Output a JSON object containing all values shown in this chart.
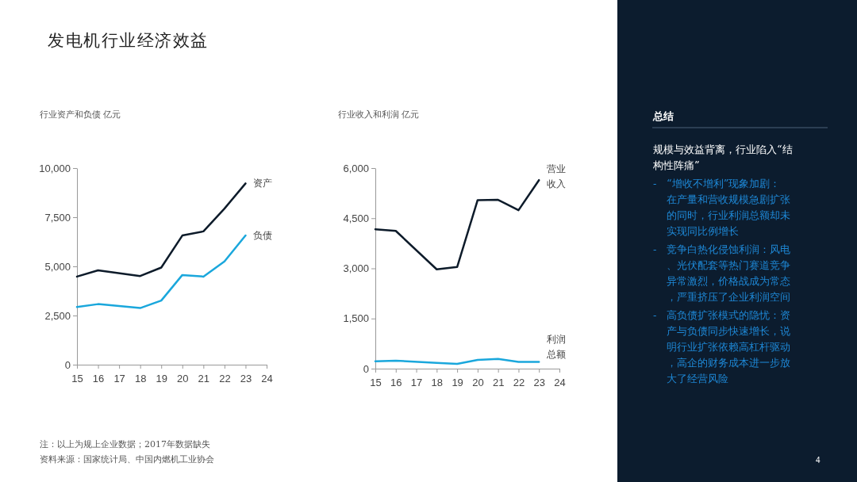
{
  "chart_data": [
    {
      "type": "other",
      "title": "发电机行业经济效益",
      "annotations": [
        "注：以上为规上企业数据；2017年数据缺失",
        "资料来源：国家统计局、中国内燃机工业协会",
        "4"
      ]
    },
    {
      "type": "line",
      "title": "行业资产和负债 亿元",
      "xlim": [
        15,
        24
      ],
      "xticks": [
        15,
        16,
        17,
        18,
        19,
        20,
        21,
        22,
        23,
        24
      ],
      "ylim": [
        0,
        10000
      ],
      "yticks": [
        {
          "value": 0,
          "label": "0"
        },
        {
          "value": 2500,
          "label": "2,500"
        },
        {
          "value": 5000,
          "label": "5,000"
        },
        {
          "value": 7500,
          "label": "7,500"
        },
        {
          "value": 10000,
          "label": "10,000"
        }
      ],
      "grid": false,
      "legend": false,
      "series": [
        {
          "name": "资产",
          "color": "#0d1b2a",
          "x": [
            15,
            16,
            18,
            19,
            20,
            21,
            22,
            23
          ],
          "values": [
            4480,
            4800,
            4510,
            4940,
            6570,
            6780,
            7940,
            9220
          ]
        },
        {
          "name": "负债",
          "color": "#1aa7dc",
          "x": [
            15,
            16,
            18,
            19,
            20,
            21,
            22,
            23
          ],
          "values": [
            2930,
            3080,
            2880,
            3260,
            4560,
            4480,
            5250,
            6570
          ]
        }
      ]
    },
    {
      "type": "line",
      "title": "行业收入和利润 亿元",
      "xlim": [
        15,
        24
      ],
      "xticks": [
        15,
        16,
        17,
        18,
        19,
        20,
        21,
        22,
        23,
        24
      ],
      "ylim": [
        0,
        6000
      ],
      "yticks": [
        {
          "value": 0,
          "label": "0"
        },
        {
          "value": 1500,
          "label": "1,500"
        },
        {
          "value": 3000,
          "label": "3,000"
        },
        {
          "value": 4500,
          "label": "4,500"
        },
        {
          "value": 6000,
          "label": "6,000"
        }
      ],
      "grid": false,
      "legend": false,
      "series": [
        {
          "name": "营业收入",
          "color": "#0d1b2a",
          "x": [
            15,
            16,
            18,
            19,
            20,
            21,
            22,
            23
          ],
          "values": [
            4170,
            4120,
            2970,
            3040,
            5040,
            5050,
            4740,
            5640
          ]
        },
        {
          "name": "利润总额",
          "color": "#1aa7dc",
          "x": [
            15,
            16,
            18,
            19,
            20,
            21,
            22,
            23
          ],
          "values": [
            220,
            240,
            170,
            140,
            260,
            290,
            200,
            200
          ]
        }
      ]
    },
    {
      "type": "other",
      "title": "总结",
      "annotations": [
        "规模与效益背离，行业陷入“结构性阵痛”",
        "- “增收不增利”现象加剧：在产量和营收规模急剧扩张的同时，行业利润总额却未实现同比例增长",
        "- 竞争白热化侵蚀利润：风电、光伏配套等热门赛道竞争异常激烈，价格战成为常态，严重挤压了企业利润空间",
        "- 高负债扩张模式的隐忧：资产与负债同步快速增长，说明行业扩张依赖高杠杆驱动，高企的财务成本进一步放大了经营风险"
      ]
    }
  ]
}
